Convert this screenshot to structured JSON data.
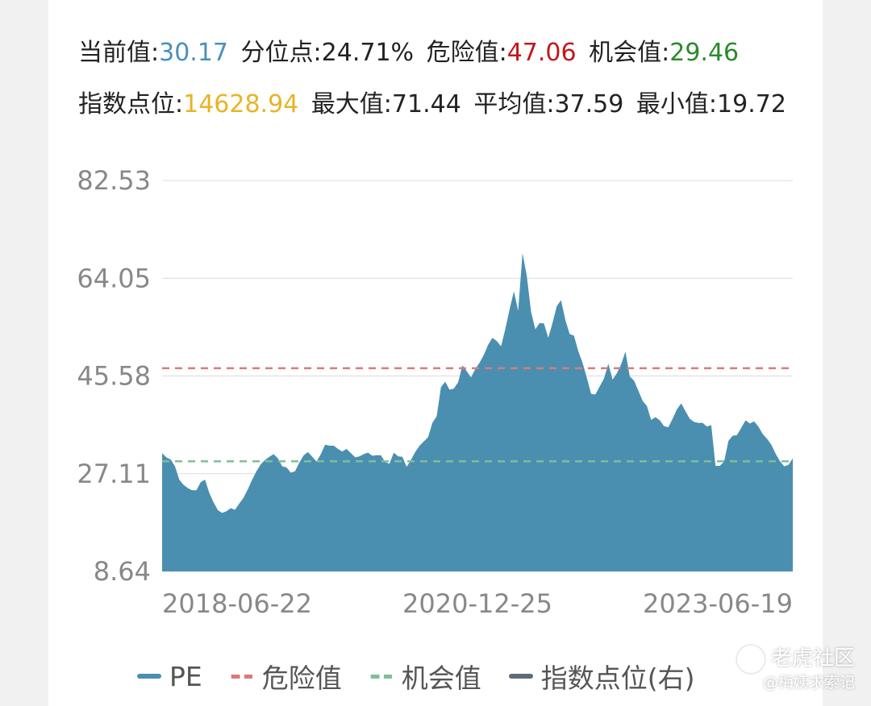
{
  "stats": {
    "current_label": "当前值:",
    "current_value": "30.17",
    "percentile_label": "分位点:",
    "percentile_value": "24.71%",
    "danger_label": "危险值:",
    "danger_value": "47.06",
    "chance_label": "机会值:",
    "chance_value": "29.46",
    "index_label": "指数点位:",
    "index_value": "14628.94",
    "max_label": "最大值:",
    "max_value": "71.44",
    "avg_label": "平均值:",
    "avg_value": "37.59",
    "min_label": "最小值:",
    "min_value": "19.72"
  },
  "legend": {
    "pe": "PE",
    "danger": "危险值",
    "chance": "机会值",
    "index": "指数点位(右)"
  },
  "watermark": {
    "brand": "老虎社区",
    "author": "@梅姨求索记"
  },
  "colors": {
    "area": "#4a8fb0",
    "danger": "#d97b7b",
    "chance": "#7fbf97",
    "index": "#5f6b7a"
  },
  "chart_data": {
    "type": "area",
    "ylim": [
      8.64,
      82.53
    ],
    "yticks": [
      "82.53",
      "64.05",
      "45.58",
      "27.11",
      "8.64"
    ],
    "ytick_values": [
      82.53,
      64.05,
      45.58,
      27.11,
      8.64
    ],
    "xticks": [
      "2018-06-22",
      "2020-12-25",
      "2023-06-19"
    ],
    "danger_line": 47.06,
    "chance_line": 29.46,
    "series": [
      {
        "name": "PE",
        "values": [
          31.0,
          30.2,
          29.8,
          28.5,
          26.0,
          25.0,
          24.4,
          24.0,
          24.0,
          25.5,
          26.0,
          23.5,
          21.7,
          20.2,
          19.7,
          20.0,
          20.6,
          20.3,
          21.5,
          22.6,
          24.2,
          26.0,
          27.6,
          28.9,
          29.7,
          30.3,
          30.8,
          30.0,
          28.5,
          28.3,
          27.3,
          27.6,
          29.2,
          30.6,
          31.2,
          30.3,
          29.4,
          30.8,
          32.6,
          32.4,
          32.4,
          31.8,
          31.3,
          31.8,
          31.0,
          30.2,
          30.4,
          30.8,
          31.1,
          30.5,
          30.6,
          30.6,
          29.3,
          29.0,
          31.1,
          30.4,
          30.3,
          28.4,
          29.7,
          31.2,
          32.4,
          33.2,
          34.0,
          36.7,
          38.0,
          43.5,
          44.5,
          43.0,
          43.2,
          44.4,
          47.6,
          46.5,
          45.3,
          46.9,
          48.1,
          49.6,
          51.5,
          52.8,
          52.2,
          51.2,
          54.5,
          58.2,
          61.6,
          57.9,
          68.8,
          64.5,
          57.7,
          54.4,
          55.6,
          55.5,
          52.8,
          55.6,
          58.8,
          59.9,
          56.1,
          53.5,
          53.2,
          50.3,
          48.1,
          45.2,
          42.2,
          42.1,
          43.6,
          45.1,
          47.9,
          44.9,
          46.1,
          47.8,
          50.2,
          45.5,
          44.7,
          42.8,
          40.9,
          39.9,
          37.3,
          37.8,
          37.2,
          36.1,
          35.9,
          37.5,
          39.3,
          40.4,
          38.9,
          37.5,
          36.9,
          36.7,
          36.7,
          36.0,
          36.3,
          28.6,
          28.6,
          29.4,
          33.3,
          34.3,
          34.4,
          35.8,
          37.2,
          36.6,
          37.0,
          36.0,
          34.6,
          33.7,
          32.6,
          30.9,
          29.5,
          28.5,
          28.8,
          30.0
        ]
      }
    ]
  }
}
